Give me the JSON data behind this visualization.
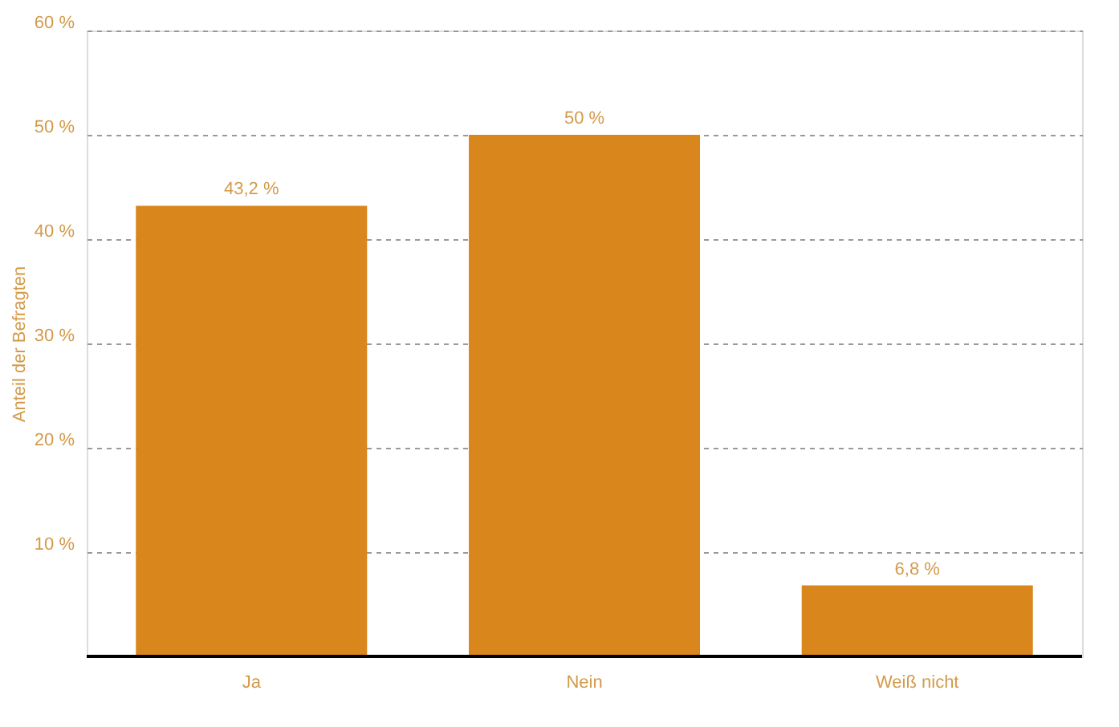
{
  "chart_data": {
    "type": "bar",
    "ylabel": "Anteil der Befragten",
    "categories": [
      "Ja",
      "Nein",
      "Weiß nicht"
    ],
    "values": [
      43.2,
      50,
      6.8
    ],
    "color": "#d9861c",
    "value_labels": [
      "43,2 %",
      "50 %",
      "6,8 %"
    ],
    "ylim": [
      0,
      60
    ],
    "yticks": [
      {
        "value": 10,
        "label": "10 %"
      },
      {
        "value": 20,
        "label": "20 %"
      },
      {
        "value": 30,
        "label": "30 %"
      },
      {
        "value": 40,
        "label": "40 %"
      },
      {
        "value": 50,
        "label": "50 %"
      },
      {
        "value": 60,
        "label": "60 %"
      }
    ],
    "grid": "y"
  }
}
